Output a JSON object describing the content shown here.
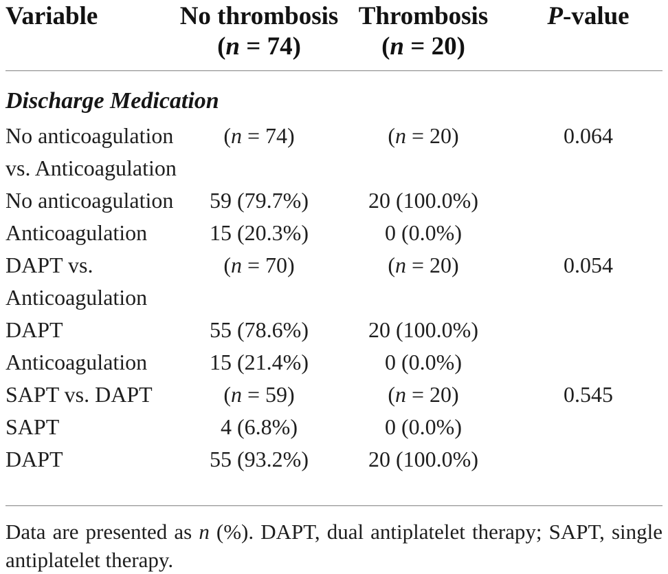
{
  "colors": {
    "background": "#ffffff",
    "text": "#1e1e1e",
    "rule": "#9a9a9a"
  },
  "table": {
    "header": {
      "variable": "Variable",
      "no_thrombosis": "No thrombosis",
      "no_thrombosis_n": "(n = 74)",
      "thrombosis": "Thrombosis",
      "thrombosis_n": "(n = 20)",
      "p_value": "P-value"
    },
    "section": "Discharge Medication",
    "rows": [
      {
        "label1": "No anticoagulation",
        "label2": "vs. Anticoagulation",
        "no_thrombosis": "(n = 74)",
        "thrombosis": "(n = 20)",
        "p_value": "0.064"
      },
      {
        "label1": "No anticoagulation",
        "no_thrombosis": "59 (79.7%)",
        "thrombosis": "20 (100.0%)",
        "p_value": ""
      },
      {
        "label1": "Anticoagulation",
        "no_thrombosis": "15 (20.3%)",
        "thrombosis": "0 (0.0%)",
        "p_value": ""
      },
      {
        "label1": "DAPT vs.",
        "label2": "Anticoagulation",
        "no_thrombosis": "(n = 70)",
        "thrombosis": "(n = 20)",
        "p_value": "0.054"
      },
      {
        "label1": "DAPT",
        "no_thrombosis": "55 (78.6%)",
        "thrombosis": "20 (100.0%)",
        "p_value": ""
      },
      {
        "label1": "Anticoagulation",
        "no_thrombosis": "15 (21.4%)",
        "thrombosis": "0 (0.0%)",
        "p_value": ""
      },
      {
        "label1": "SAPT vs. DAPT",
        "no_thrombosis": "(n = 59)",
        "thrombosis": "(n = 20)",
        "p_value": "0.545"
      },
      {
        "label1": "SAPT",
        "no_thrombosis": "4 (6.8%)",
        "thrombosis": "0 (0.0%)",
        "p_value": ""
      },
      {
        "label1": "DAPT",
        "no_thrombosis": "55 (93.2%)",
        "thrombosis": "20 (100.0%)",
        "p_value": ""
      }
    ],
    "footnote_line1": "Data are presented as n (%). DAPT, dual antiplatelet therapy; SAPT, single",
    "footnote_line2": "antiplatelet therapy."
  }
}
